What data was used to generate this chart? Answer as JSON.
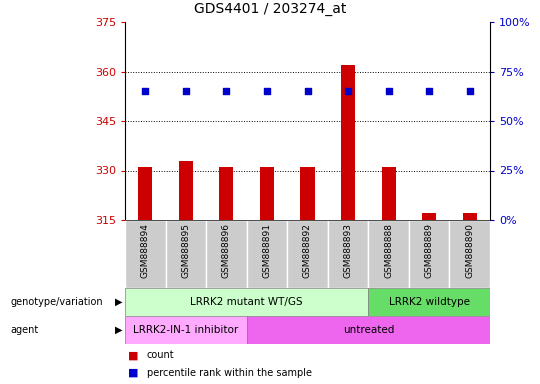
{
  "title": "GDS4401 / 203274_at",
  "samples": [
    "GSM888894",
    "GSM888895",
    "GSM888896",
    "GSM888891",
    "GSM888892",
    "GSM888893",
    "GSM888888",
    "GSM888889",
    "GSM888890"
  ],
  "counts": [
    331,
    333,
    331,
    331,
    331,
    362,
    331,
    317,
    317
  ],
  "percentile_ranks": [
    65,
    65,
    65,
    65,
    65,
    65,
    65,
    65,
    65
  ],
  "ylim_left": [
    315,
    375
  ],
  "ylim_right": [
    0,
    100
  ],
  "yticks_left": [
    315,
    330,
    345,
    360,
    375
  ],
  "yticks_right": [
    0,
    25,
    50,
    75,
    100
  ],
  "hlines": [
    330,
    345,
    360
  ],
  "bar_color": "#cc0000",
  "dot_color": "#0000cc",
  "bar_width": 0.35,
  "genotype_groups": [
    {
      "label": "LRRK2 mutant WT/GS",
      "start": 0,
      "end": 6,
      "color": "#ccffcc"
    },
    {
      "label": "LRRK2 wildtype",
      "start": 6,
      "end": 9,
      "color": "#66dd66"
    }
  ],
  "agent_groups": [
    {
      "label": "LRRK2-IN-1 inhibitor",
      "start": 0,
      "end": 3,
      "color": "#ffaaff"
    },
    {
      "label": "untreated",
      "start": 3,
      "end": 9,
      "color": "#ee66ee"
    }
  ],
  "legend_count_label": "count",
  "legend_pct_label": "percentile rank within the sample",
  "left_label_color": "#cc0000",
  "right_label_color": "#0000cc",
  "grid_color": "#000000",
  "bg_color": "#ffffff",
  "plot_bg_color": "#ffffff",
  "tick_bg_color": "#cccccc",
  "left_col_labels": [
    "genotype/variation",
    "agent"
  ],
  "arrow_char": "▶"
}
